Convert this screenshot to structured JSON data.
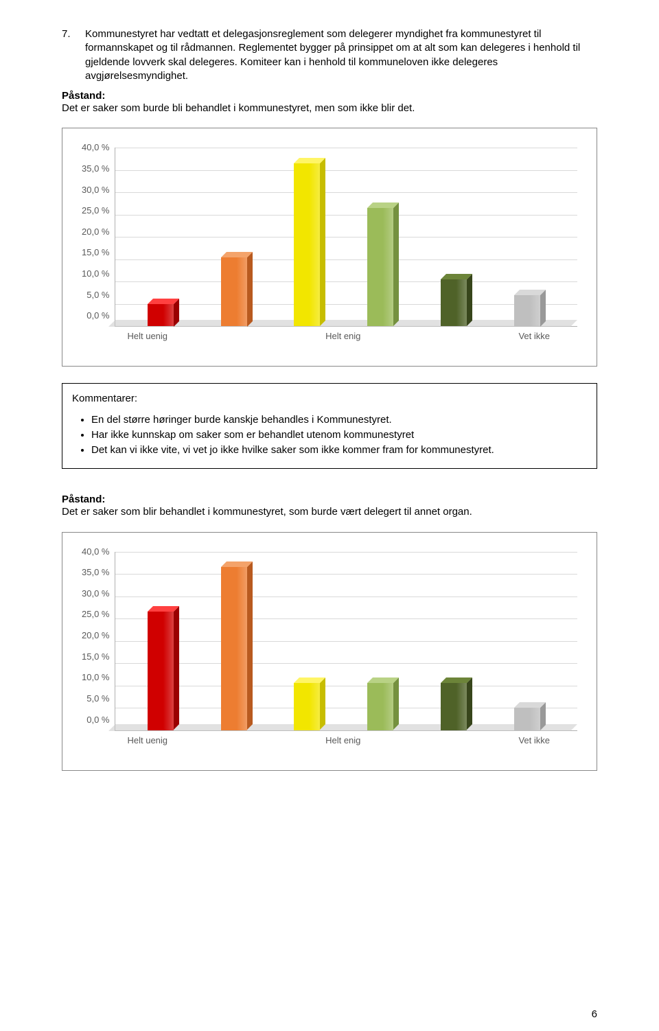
{
  "section": {
    "number": "7.",
    "intro_text": "Kommunestyret har vedtatt et delegasjonsreglement som delegerer myndighet fra kommunestyret til formannskapet og til rådmannen. Reglementet bygger på prinsippet om at alt som kan delegeres i henhold til gjeldende lovverk skal delegeres. Komiteer kan i henhold til kommuneloven ikke delegeres avgjørelsesmyndighet."
  },
  "paastand1": {
    "label": "Påstand:",
    "text": "Det er saker som burde bli behandlet i kommunestyret, men som ikke blir det."
  },
  "chart1": {
    "type": "bar",
    "y_ticks": [
      "40,0 %",
      "35,0 %",
      "30,0 %",
      "25,0 %",
      "20,0 %",
      "15,0 %",
      "10,0 %",
      "5,0 %",
      "0,0 %"
    ],
    "y_max": 40,
    "x_labels": [
      "Helt uenig",
      "Helt enig",
      "Vet ikke"
    ],
    "bars": [
      {
        "value": 5,
        "front": "#d00000",
        "side": "#9a0000",
        "top": "#ff4040"
      },
      {
        "value": 15.5,
        "front": "#ed7d31",
        "side": "#b85a1f",
        "top": "#f4a36a"
      },
      {
        "value": 36.5,
        "front": "#f2e600",
        "side": "#c7bd00",
        "top": "#fff566"
      },
      {
        "value": 26.5,
        "front": "#9bbb59",
        "side": "#75913f",
        "top": "#b9d285"
      },
      {
        "value": 10.5,
        "front": "#4f6228",
        "side": "#37451b",
        "top": "#6c8439"
      },
      {
        "value": 7,
        "front": "#bfbfbf",
        "side": "#999999",
        "top": "#d9d9d9"
      }
    ],
    "grid_color": "#d9d9d9",
    "axis_color": "#b0b0b0",
    "label_color": "#595959",
    "background": "#ffffff"
  },
  "comments": {
    "title": "Kommentarer:",
    "items": [
      "En del større høringer burde kanskje behandles i Kommunestyret.",
      "Har ikke kunnskap om saker som er behandlet utenom kommunestyret",
      "Det kan vi ikke vite, vi vet jo ikke hvilke saker som ikke kommer fram for kommunestyret."
    ]
  },
  "paastand2": {
    "label": "Påstand:",
    "text": "Det er saker som blir behandlet i kommunestyret, som burde vært delegert til annet organ."
  },
  "chart2": {
    "type": "bar",
    "y_ticks": [
      "40,0 %",
      "35,0 %",
      "30,0 %",
      "25,0 %",
      "20,0 %",
      "15,0 %",
      "10,0 %",
      "5,0 %",
      "0,0 %"
    ],
    "y_max": 40,
    "x_labels": [
      "Helt uenig",
      "Helt enig",
      "Vet ikke"
    ],
    "bars": [
      {
        "value": 26.5,
        "front": "#d00000",
        "side": "#9a0000",
        "top": "#ff4040"
      },
      {
        "value": 36.5,
        "front": "#ed7d31",
        "side": "#b85a1f",
        "top": "#f4a36a"
      },
      {
        "value": 10.5,
        "front": "#f2e600",
        "side": "#c7bd00",
        "top": "#fff566"
      },
      {
        "value": 10.5,
        "front": "#9bbb59",
        "side": "#75913f",
        "top": "#b9d285"
      },
      {
        "value": 10.5,
        "front": "#4f6228",
        "side": "#37451b",
        "top": "#6c8439"
      },
      {
        "value": 5,
        "front": "#bfbfbf",
        "side": "#999999",
        "top": "#d9d9d9"
      }
    ],
    "grid_color": "#d9d9d9",
    "axis_color": "#b0b0b0",
    "label_color": "#595959",
    "background": "#ffffff"
  },
  "page_number": "6"
}
